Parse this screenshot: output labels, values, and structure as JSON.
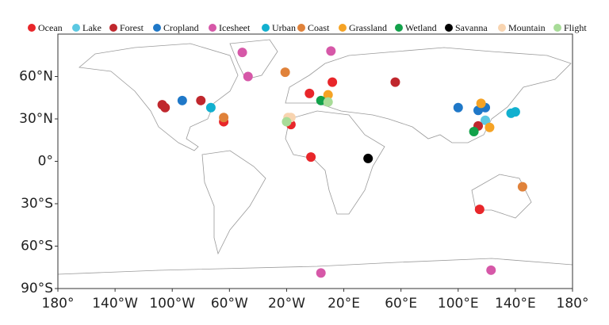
{
  "chart_data": {
    "type": "scatter",
    "legend": "top",
    "xlim": [
      -180,
      180
    ],
    "ylim": [
      -90,
      90
    ],
    "xticks": [
      {
        "value": -180,
        "label": "180°"
      },
      {
        "value": -140,
        "label": "140°W"
      },
      {
        "value": -100,
        "label": "100°W"
      },
      {
        "value": -60,
        "label": "60°W"
      },
      {
        "value": -20,
        "label": "20°W"
      },
      {
        "value": 20,
        "label": "20°E"
      },
      {
        "value": 60,
        "label": "60°E"
      },
      {
        "value": 100,
        "label": "100°E"
      },
      {
        "value": 140,
        "label": "140°E"
      },
      {
        "value": 180,
        "label": "180°"
      }
    ],
    "yticks": [
      {
        "value": -90,
        "label": "90°S"
      },
      {
        "value": -60,
        "label": "60°S"
      },
      {
        "value": -30,
        "label": "30°S"
      },
      {
        "value": 0,
        "label": "0°"
      },
      {
        "value": 30,
        "label": "30°N"
      },
      {
        "value": 60,
        "label": "60°N"
      }
    ],
    "series": [
      {
        "name": "Ocean",
        "color": "#e8262a",
        "x": [
          -4,
          12,
          -17,
          -64,
          -3,
          115
        ],
        "y": [
          48,
          56,
          26,
          28,
          3,
          -34
        ]
      },
      {
        "name": "Lake",
        "color": "#5bc8e2",
        "x": [
          119
        ],
        "y": [
          29
        ]
      },
      {
        "name": "Forest",
        "color": "#c0272d",
        "x": [
          -107,
          -105,
          -80,
          56,
          114
        ],
        "y": [
          40,
          38,
          43,
          56,
          25
        ]
      },
      {
        "name": "Cropland",
        "color": "#1f78c8",
        "x": [
          -93,
          100,
          114,
          119
        ],
        "y": [
          43,
          38,
          36,
          38
        ]
      },
      {
        "name": "Icesheet",
        "color": "#d658a8",
        "x": [
          -51,
          11,
          -47,
          4,
          123
        ],
        "y": [
          77,
          78,
          60,
          -79,
          -77
        ]
      },
      {
        "name": "Urban",
        "color": "#12b0cf",
        "x": [
          -73,
          137,
          140
        ],
        "y": [
          38,
          34,
          35
        ]
      },
      {
        "name": "Coast",
        "color": "#e0823a",
        "x": [
          -21,
          -64,
          145
        ],
        "y": [
          63,
          31,
          -18
        ]
      },
      {
        "name": "Grassland",
        "color": "#f5a325",
        "x": [
          9,
          116,
          122
        ],
        "y": [
          47,
          41,
          24
        ]
      },
      {
        "name": "Wetland",
        "color": "#12a14a",
        "x": [
          4,
          111
        ],
        "y": [
          43,
          21
        ]
      },
      {
        "name": "Savanna",
        "color": "#000000",
        "x": [
          37
        ],
        "y": [
          2
        ]
      },
      {
        "name": "Mountain",
        "color": "#f8d4b0",
        "x": [
          -19,
          -17
        ],
        "y": [
          31,
          31
        ]
      },
      {
        "name": "Flight",
        "color": "#a8dc98",
        "x": [
          9,
          -20
        ],
        "y": [
          42,
          28
        ]
      }
    ]
  }
}
